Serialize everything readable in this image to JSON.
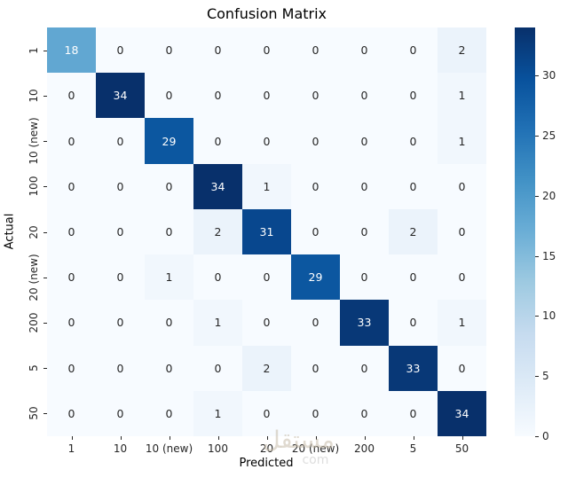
{
  "figure": {
    "title": "Confusion Matrix",
    "xlabel": "Predicted",
    "ylabel": "Actual"
  },
  "watermark": {
    "text_arabic": "مستقل",
    "text_latin": "com"
  },
  "chart_data": {
    "type": "heatmap",
    "title": "Confusion Matrix",
    "xlabel": "Predicted",
    "ylabel": "Actual",
    "x_categories": [
      "1",
      "10",
      "10 (new)",
      "100",
      "20",
      "20 (new)",
      "200",
      "5",
      "50"
    ],
    "y_categories": [
      "1",
      "10",
      "10 (new)",
      "100",
      "20",
      "20 (new)",
      "200",
      "5",
      "50"
    ],
    "matrix": [
      [
        18,
        0,
        0,
        0,
        0,
        0,
        0,
        0,
        2
      ],
      [
        0,
        34,
        0,
        0,
        0,
        0,
        0,
        0,
        1
      ],
      [
        0,
        0,
        29,
        0,
        0,
        0,
        0,
        0,
        1
      ],
      [
        0,
        0,
        0,
        34,
        1,
        0,
        0,
        0,
        0
      ],
      [
        0,
        0,
        0,
        2,
        31,
        0,
        0,
        2,
        0
      ],
      [
        0,
        0,
        1,
        0,
        0,
        29,
        0,
        0,
        0
      ],
      [
        0,
        0,
        0,
        1,
        0,
        0,
        33,
        0,
        1
      ],
      [
        0,
        0,
        0,
        0,
        2,
        0,
        0,
        33,
        0
      ],
      [
        0,
        0,
        0,
        1,
        0,
        0,
        0,
        0,
        34
      ]
    ],
    "vmin": 0,
    "vmax": 34,
    "grid": false,
    "annotations_shown": true,
    "annotation_colors": {
      "on_light": "#262626",
      "on_dark": "#ffffff"
    },
    "colormap": {
      "name": "Blues",
      "stops": [
        {
          "t": 0.0,
          "color": "#f7fbff"
        },
        {
          "t": 0.125,
          "color": "#deebf7"
        },
        {
          "t": 0.25,
          "color": "#c6dbef"
        },
        {
          "t": 0.375,
          "color": "#9ecae1"
        },
        {
          "t": 0.5,
          "color": "#6baed6"
        },
        {
          "t": 0.625,
          "color": "#4292c6"
        },
        {
          "t": 0.75,
          "color": "#2171b5"
        },
        {
          "t": 0.875,
          "color": "#08519c"
        },
        {
          "t": 1.0,
          "color": "#08306b"
        }
      ]
    },
    "colorbar": {
      "position": "right",
      "ticks": [
        0,
        5,
        10,
        15,
        20,
        25,
        30
      ]
    }
  }
}
